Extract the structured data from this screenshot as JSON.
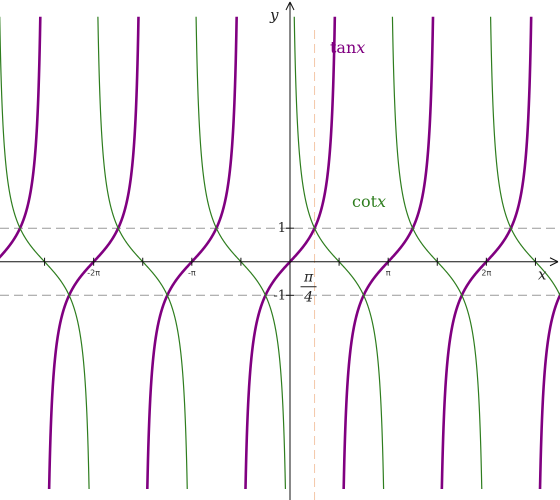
{
  "chart_data": {
    "type": "line",
    "title": "",
    "xlabel": "x",
    "ylabel": "y",
    "xlim": [
      -9.28,
      8.64
    ],
    "ylim": [
      -7.1,
      7.8
    ],
    "grid": false,
    "x_ticks": [
      {
        "value": -6.2832,
        "label": "-2π"
      },
      {
        "value": -3.1416,
        "label": "-π"
      },
      {
        "value": 3.1416,
        "label": "π"
      },
      {
        "value": 6.2832,
        "label": "2π"
      }
    ],
    "y_ticks": [
      {
        "value": 1,
        "label": "1"
      },
      {
        "value": -1,
        "label": "-1"
      }
    ],
    "reference_lines": [
      {
        "orientation": "horizontal",
        "y": 1,
        "style": "dashed"
      },
      {
        "orientation": "horizontal",
        "y": -1,
        "style": "dashed"
      },
      {
        "orientation": "vertical",
        "x": 0.7854,
        "style": "dashed",
        "label_num": "π",
        "label_den": "4"
      }
    ],
    "series": [
      {
        "name": "tan",
        "label_suffix": "x",
        "function": "tan",
        "color": "#800080"
      },
      {
        "name": "cot",
        "label_suffix": "x",
        "function": "cot",
        "color": "#2e7d1e"
      }
    ]
  }
}
